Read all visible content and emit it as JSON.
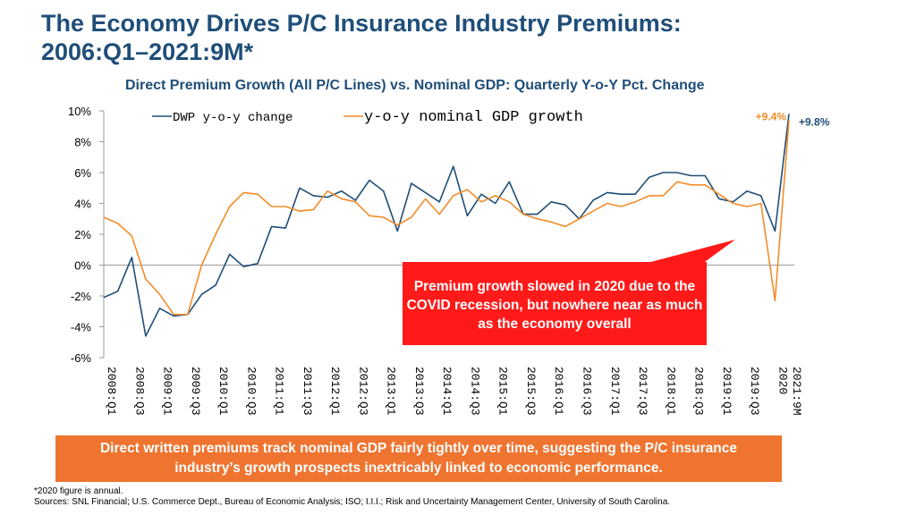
{
  "header": {
    "title_line1": "The Economy Drives P/C Insurance Industry Premiums:",
    "title_line2": "2006:Q1–2021:9M*",
    "subtitle": "Direct Premium Growth (All P/C Lines) vs. Nominal GDP: Quarterly Y-o-Y Pct. Change"
  },
  "callout": {
    "text": "Premium growth slowed in 2020 due to the COVID recession, but nowhere near as much as the economy overall"
  },
  "banner": {
    "text": "Direct written premiums track nominal GDP fairly tightly over time, suggesting the P/C insurance industry’s growth prospects inextricably linked to economic performance."
  },
  "footnote": {
    "note": "*2020 figure is annual.",
    "sources": "Sources: SNL Financial; U.S. Commerce Dept., Bureau of Economic Analysis; ISO; I.I.I.; Risk and Uncertainty Management Center, University of South Carolina."
  },
  "chart_data": {
    "type": "line",
    "title": "Direct Premium Growth (All P/C Lines) vs. Nominal GDP: Quarterly Y-o-Y Pct. Change",
    "xlabel": "",
    "ylabel": "",
    "ylim": [
      -6,
      10
    ],
    "y_ticks": [
      "10%",
      "8%",
      "6%",
      "4%",
      "2%",
      "0%",
      "-2%",
      "-4%",
      "-6%"
    ],
    "y_tick_values": [
      10,
      8,
      6,
      4,
      2,
      0,
      -2,
      -4,
      -6
    ],
    "categories": [
      "2008:Q1",
      "2008:Q2",
      "2008:Q3",
      "2008:Q4",
      "2009:Q1",
      "2009:Q2",
      "2009:Q3",
      "2009:Q4",
      "2010:Q1",
      "2010:Q2",
      "2010:Q3",
      "2010:Q4",
      "2011:Q1",
      "2011:Q2",
      "2011:Q3",
      "2011:Q4",
      "2012:Q1",
      "2012:Q2",
      "2012:Q3",
      "2012:Q4",
      "2013:Q1",
      "2013:Q2",
      "2013:Q3",
      "2013:Q4",
      "2014:Q1",
      "2014:Q2",
      "2014:Q3",
      "2014:Q4",
      "2015:Q1",
      "2015:Q2",
      "2015:Q3",
      "2015:Q4",
      "2016:Q1",
      "2016:Q2",
      "2016:Q3",
      "2016:Q4",
      "2017:Q1",
      "2017:Q2",
      "2017:Q3",
      "2017:Q4",
      "2018:Q1",
      "2018:Q2",
      "2018:Q3",
      "2018:Q4",
      "2019:Q1",
      "2019:Q2",
      "2019:Q3",
      "2019:Q4",
      "2020",
      "2021:9M"
    ],
    "tick_labels": [
      "2008:Q1",
      "2008:Q3",
      "2009:Q1",
      "2009:Q3",
      "2010:Q1",
      "2010:Q3",
      "2011:Q1",
      "2011:Q3",
      "2012:Q1",
      "2012:Q3",
      "2013:Q1",
      "2013:Q3",
      "2014:Q1",
      "2014:Q3",
      "2015:Q1",
      "2015:Q3",
      "2016:Q1",
      "2016:Q3",
      "2017:Q1",
      "2017:Q3",
      "2018:Q1",
      "2018:Q3",
      "2019:Q1",
      "2019:Q3",
      "2020",
      "2021:9M"
    ],
    "series": [
      {
        "name": "DWP y-o-y change",
        "color": "#1f4e79",
        "values": [
          -2.1,
          -1.7,
          0.5,
          -4.6,
          -2.8,
          -3.3,
          -3.2,
          -1.9,
          -1.3,
          0.7,
          -0.1,
          0.1,
          2.5,
          2.4,
          5.0,
          4.5,
          4.4,
          4.8,
          4.2,
          5.5,
          4.8,
          2.2,
          5.3,
          4.7,
          4.1,
          6.4,
          3.2,
          4.6,
          4.0,
          5.4,
          3.3,
          3.3,
          4.1,
          3.9,
          3.0,
          4.2,
          4.7,
          4.6,
          4.6,
          5.7,
          6.0,
          6.0,
          5.8,
          5.8,
          4.3,
          4.1,
          4.8,
          4.5,
          2.2,
          9.8
        ]
      },
      {
        "name": "y-o-y nominal GDP growth",
        "color": "#f28c28",
        "values": [
          3.1,
          2.7,
          1.9,
          -0.9,
          -1.9,
          -3.2,
          -3.2,
          0.0,
          2.0,
          3.8,
          4.7,
          4.6,
          3.8,
          3.8,
          3.5,
          3.6,
          4.8,
          4.3,
          4.1,
          3.2,
          3.1,
          2.6,
          3.1,
          4.3,
          3.3,
          4.5,
          4.9,
          4.1,
          4.5,
          4.1,
          3.3,
          3.0,
          2.8,
          2.5,
          3.0,
          3.5,
          4.0,
          3.8,
          4.1,
          4.5,
          4.5,
          5.4,
          5.2,
          5.2,
          4.6,
          4.0,
          3.8,
          4.0,
          -2.3,
          9.4
        ]
      }
    ],
    "annotations": [
      {
        "text": "+9.4%",
        "series": 1,
        "color": "#f28c28"
      },
      {
        "text": "+9.8%",
        "series": 0,
        "color": "#1f4e79"
      }
    ],
    "legend_position": "top"
  }
}
